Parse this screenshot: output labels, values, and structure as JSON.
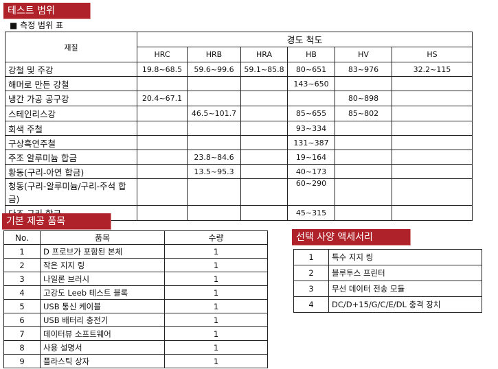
{
  "section1": {
    "title": "테스트 범위",
    "subtitle": "■ 측정 범위 표"
  },
  "range_table": {
    "material_header": "재질",
    "scale_header": "경도 척도",
    "scales": [
      "HRC",
      "HRB",
      "HRA",
      "HB",
      "HV",
      "HS"
    ],
    "rows": [
      {
        "material": "강철 및 주강",
        "values": [
          "19.8~68.5",
          "59.6~99.6",
          "59.1~85.8",
          "80~651",
          "83~976",
          "32.2~115"
        ]
      },
      {
        "material": "해머로 만든 강철",
        "values": [
          "",
          "",
          "",
          "143~650",
          "",
          ""
        ]
      },
      {
        "material": "냉간 가공 공구강",
        "values": [
          "20.4~67.1",
          "",
          "",
          "",
          "80~898",
          ""
        ]
      },
      {
        "material": "스테인리스강",
        "values": [
          "",
          "46.5~101.7",
          "",
          "85~655",
          "85~802",
          ""
        ]
      },
      {
        "material": "회색 주철",
        "values": [
          "",
          "",
          "",
          "93~334",
          "",
          ""
        ]
      },
      {
        "material": "구상흑연주철",
        "values": [
          "",
          "",
          "",
          "131~387",
          "",
          ""
        ]
      },
      {
        "material": "주조 알루미늄 합금",
        "values": [
          "",
          "23.8~84.6",
          "",
          "19~164",
          "",
          ""
        ]
      },
      {
        "material": "황동(구리-아연 합금)",
        "values": [
          "",
          "13.5~95.3",
          "",
          "40~173",
          "",
          ""
        ]
      },
      {
        "material": "청동(구리-알루미늄/구리-주석 합금)",
        "values": [
          "",
          "",
          "",
          "60~290",
          "",
          ""
        ]
      },
      {
        "material": "단조 구리 합금",
        "values": [
          "",
          "",
          "",
          "45~315",
          "",
          ""
        ]
      }
    ]
  },
  "section2": {
    "title": "기본 제공 품목"
  },
  "standard_table": {
    "headers": [
      "No.",
      "품목",
      "수량"
    ],
    "rows": [
      [
        "1",
        "D 프로브가 포함된 본체",
        "1"
      ],
      [
        "2",
        "작은 지지 링",
        "1"
      ],
      [
        "3",
        "나일론 브러시",
        "1"
      ],
      [
        "4",
        "고강도 Leeb 테스트 블록",
        "1"
      ],
      [
        "5",
        "USB 통신 케이블",
        "1"
      ],
      [
        "6",
        "USB 배터리 충전기",
        "1"
      ],
      [
        "7",
        "데이터뷰 소프트웨어",
        "1"
      ],
      [
        "8",
        "사용 설명서",
        "1"
      ],
      [
        "9",
        "플라스틱 상자",
        "1"
      ]
    ]
  },
  "section3": {
    "title": "선택 사양 액세서리"
  },
  "optional_table": {
    "rows": [
      [
        "1",
        "특수 지지 링"
      ],
      [
        "2",
        "블루투스 프린터"
      ],
      [
        "3",
        "무선 데이터 전송 모듈"
      ],
      [
        "4",
        "DC/D+15/G/C/E/DL 충격 장치"
      ]
    ]
  },
  "colors": {
    "banner": "#b0222a"
  }
}
